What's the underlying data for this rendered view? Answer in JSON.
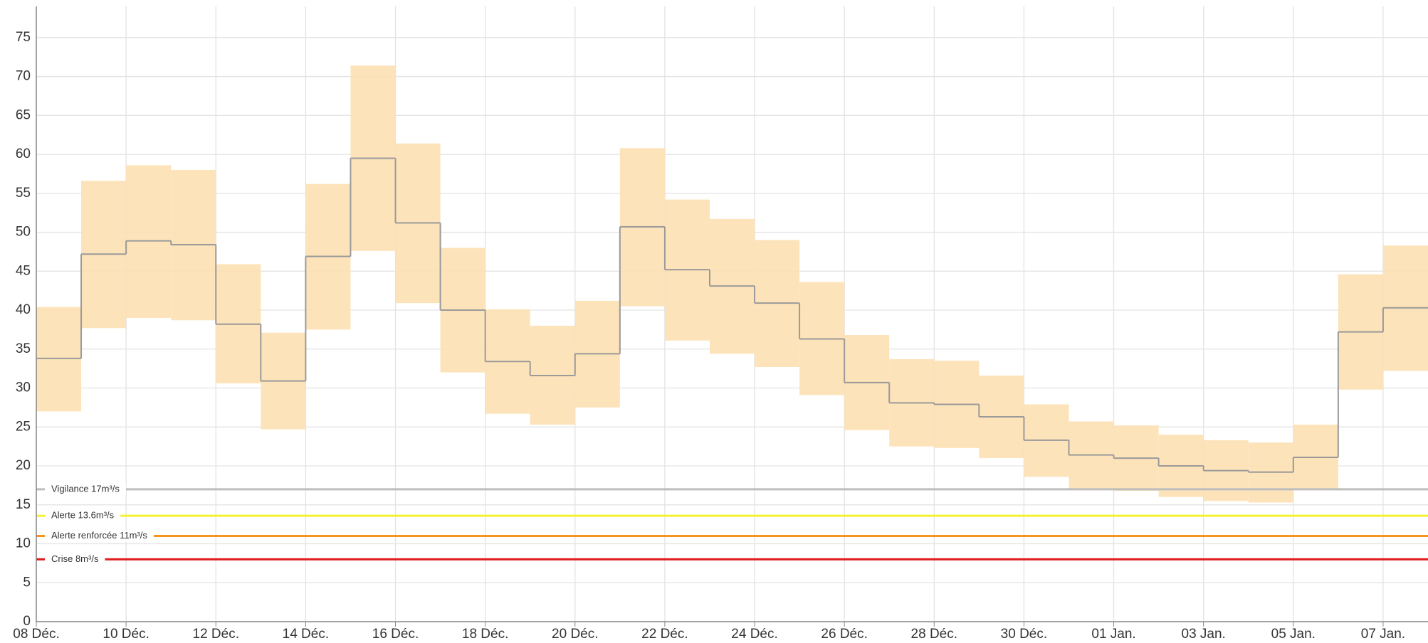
{
  "chart_data": {
    "type": "step-band",
    "categories": [
      "08 Déc.",
      null,
      "10 Déc.",
      null,
      "12 Déc.",
      null,
      "14 Déc.",
      null,
      "16 Déc.",
      null,
      "18 Déc.",
      null,
      "20 Déc.",
      null,
      "22 Déc.",
      null,
      "24 Déc.",
      null,
      "26 Déc.",
      null,
      "28 Déc.",
      null,
      "30 Déc.",
      null,
      "01 Jan.",
      null,
      "03 Jan.",
      null,
      "05 Jan.",
      null,
      "07 Jan."
    ],
    "values": [
      33.8,
      47.2,
      48.9,
      48.4,
      38.2,
      30.9,
      46.9,
      59.5,
      51.2,
      40,
      33.4,
      31.6,
      34.4,
      50.7,
      45.2,
      43.1,
      40.9,
      36.3,
      30.7,
      28.1,
      27.9,
      26.3,
      23.3,
      21.4,
      21,
      20,
      19.4,
      19.2,
      21.1,
      37.2,
      40.3
    ],
    "color": "#9a9a9a",
    "band": {
      "color": "#fde0b1",
      "low": [
        27,
        37.7,
        39,
        38.7,
        30.6,
        24.7,
        37.5,
        47.6,
        40.9,
        32,
        26.7,
        25.3,
        27.5,
        40.5,
        36.1,
        34.4,
        32.7,
        29.1,
        24.6,
        22.5,
        22.3,
        21,
        18.6,
        17.1,
        16.8,
        16,
        15.5,
        15.3,
        16.9,
        29.8,
        32.2
      ],
      "high": [
        40.4,
        56.6,
        58.6,
        58,
        45.9,
        37.1,
        56.2,
        71.4,
        61.4,
        48,
        40.1,
        38,
        41.2,
        60.8,
        54.2,
        51.7,
        49,
        43.6,
        36.8,
        33.7,
        33.5,
        31.6,
        27.9,
        25.7,
        25.2,
        24,
        23.3,
        23,
        25.3,
        44.6,
        48.3
      ]
    },
    "thresholds": [
      {
        "label": "Vigilance 17m³/s",
        "value": 17,
        "color": "#bdbdbd"
      },
      {
        "label": "Alerte 13.6m³/s",
        "value": 13.6,
        "color": "#f2f230"
      },
      {
        "label": "Alerte renforcée 11m³/s",
        "value": 11,
        "color": "#f7941d"
      },
      {
        "label": "Crise 8m³/s",
        "value": 8,
        "color": "#e3191c"
      }
    ],
    "ylim": [
      0,
      79
    ],
    "yticks": [
      0,
      5,
      10,
      15,
      20,
      25,
      30,
      35,
      40,
      45,
      50,
      55,
      60,
      65,
      70,
      75
    ],
    "grid": true
  }
}
